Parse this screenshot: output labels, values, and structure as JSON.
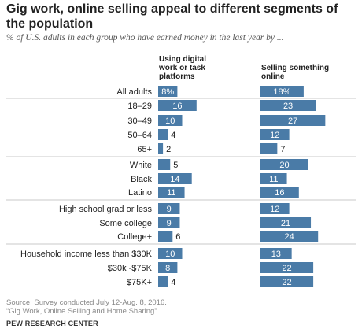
{
  "title": "Gig work, online selling appeal to different segments of the population",
  "subtitle": "% of U.S. adults in each group who have earned money in the last year by ...",
  "source_line1": "Source: Survey conducted July 12-Aug. 8, 2016.",
  "source_line2": "“Gig Work, Online Selling and Home Sharing”",
  "brand": "PEW RESEARCH CENTER",
  "colors": {
    "bar": "#4a7ba7",
    "divider": "#c8c8c8",
    "label": "#222222",
    "in_bar_label": "#ffffff"
  },
  "chart_data": {
    "type": "bar",
    "orientation": "horizontal",
    "categories": [
      "All adults",
      "18-29",
      "30-49",
      "50-64",
      "65+",
      "White",
      "Black",
      "Latino",
      "High school grad or less",
      "Some college",
      "College+",
      "Household income less than $30K",
      "$30k -$75K",
      "$75K+"
    ],
    "category_labels": [
      "All adults",
      "18–29",
      "30–49",
      "50–64",
      "65+",
      "White",
      "Black",
      "Latino",
      "High school grad or less",
      "Some college",
      "College+",
      "Household income less than $30K",
      "$30k -$75K",
      "$75K+"
    ],
    "groups": [
      [
        0
      ],
      [
        1,
        2,
        3,
        4
      ],
      [
        5,
        6,
        7
      ],
      [
        8,
        9,
        10
      ],
      [
        11,
        12,
        13
      ]
    ],
    "series": [
      {
        "name": "Using digital work or task platforms",
        "values": [
          8,
          16,
          10,
          4,
          2,
          5,
          14,
          11,
          9,
          9,
          6,
          10,
          8,
          4
        ],
        "value_labels": [
          "8%",
          "16",
          "10",
          "4",
          "2",
          "5",
          "14",
          "11",
          "9",
          "9",
          "6",
          "10",
          "8",
          "4"
        ]
      },
      {
        "name": "Selling something online",
        "values": [
          18,
          23,
          27,
          12,
          7,
          20,
          11,
          16,
          12,
          21,
          24,
          13,
          22,
          22
        ],
        "value_labels": [
          "18%",
          "23",
          "27",
          "12",
          "7",
          "20",
          "11",
          "16",
          "12",
          "21",
          "24",
          "13",
          "22",
          "22"
        ]
      }
    ],
    "series_headers": [
      [
        "Using digital",
        "work or task",
        "platforms"
      ],
      [
        "Selling something",
        "online"
      ]
    ],
    "xlim": [
      0,
      30
    ],
    "grid": false,
    "legend": "none"
  }
}
